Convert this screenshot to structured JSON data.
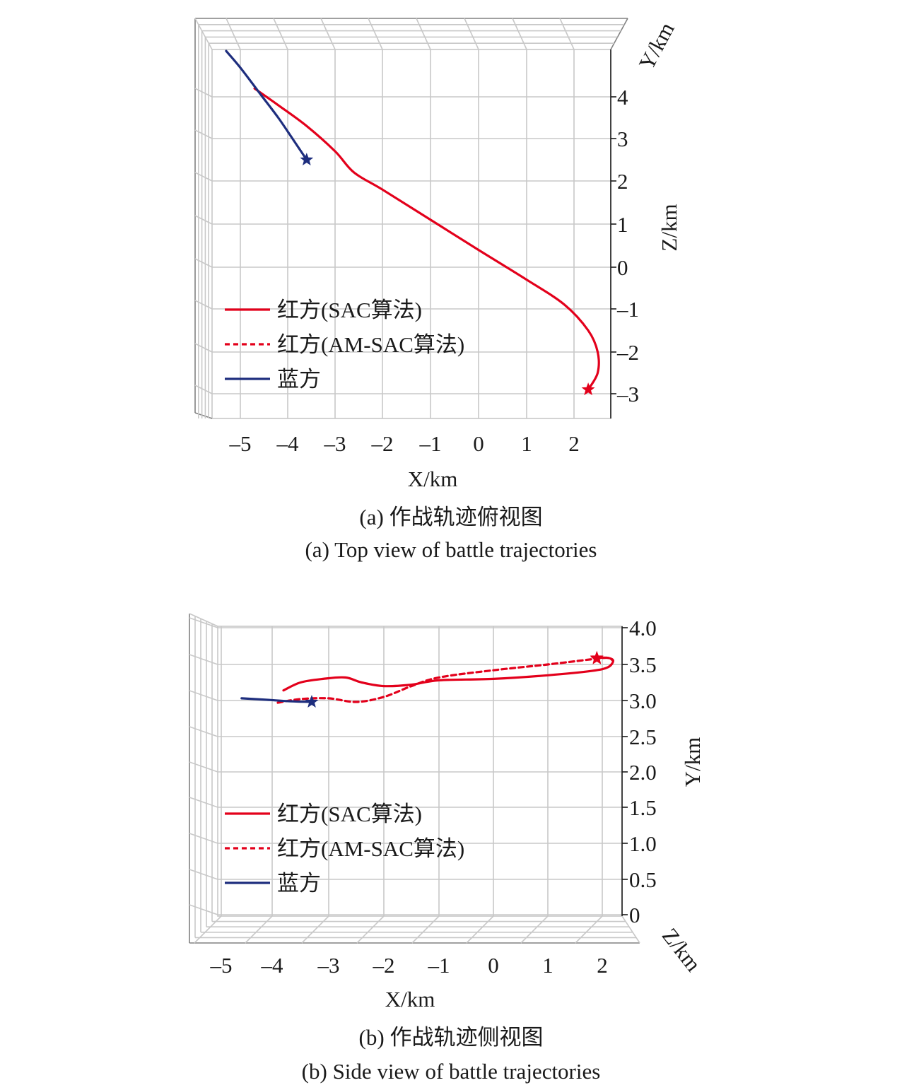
{
  "chart_data": [
    {
      "type": "line",
      "view": "top",
      "caption_cn": "(a) 作战轨迹俯视图",
      "caption_en": "(a) Top view of battle trajectories",
      "xlabel": "X/km",
      "ylabel": "Z/km",
      "depth_label": "Y/km",
      "x_ticks": [
        "–5",
        "–4",
        "–3",
        "–2",
        "–1",
        "0",
        "1",
        "2"
      ],
      "y_ticks": [
        "4",
        "3",
        "2",
        "1",
        "0",
        "–1",
        "–2",
        "–3"
      ],
      "xlim": [
        -5.6,
        2.8
      ],
      "ylim": [
        -3.5,
        4.9
      ],
      "grid": true,
      "legend_position": "bottom-left",
      "legend": [
        {
          "label": "红方(SAC算法)",
          "color": "#e3001b",
          "dash": "solid"
        },
        {
          "label": "红方(AM-SAC算法)",
          "color": "#e3001b",
          "dash": "dashed"
        },
        {
          "label": "蓝方",
          "color": "#1e2e7e",
          "dash": "solid"
        }
      ],
      "series": [
        {
          "label_index": 0,
          "color": "#e3001b",
          "dash": "solid",
          "end_marker": "star",
          "x": [
            -4.7,
            -4.2,
            -3.6,
            -3.0,
            -2.6,
            -2.0,
            -1.0,
            0.0,
            1.0,
            1.8,
            2.3,
            2.5,
            2.5,
            2.3
          ],
          "y": [
            4.2,
            3.8,
            3.3,
            2.7,
            2.2,
            1.8,
            1.1,
            0.4,
            -0.3,
            -0.9,
            -1.5,
            -2.0,
            -2.5,
            -2.9
          ]
        },
        {
          "label_index": 2,
          "color": "#1e2e7e",
          "dash": "solid",
          "end_marker": "star",
          "x": [
            -5.3,
            -5.0,
            -4.6,
            -4.2,
            -3.9,
            -3.6
          ],
          "y": [
            5.1,
            4.7,
            4.1,
            3.5,
            3.0,
            2.5
          ]
        }
      ]
    },
    {
      "type": "line",
      "view": "side",
      "caption_cn": "(b) 作战轨迹侧视图",
      "caption_en": "(b) Side view of battle trajectories",
      "xlabel": "X/km",
      "ylabel": "Y/km",
      "depth_label": "Z/km",
      "x_ticks": [
        "–5",
        "–4",
        "–3",
        "–2",
        "–1",
        "0",
        "1",
        "2"
      ],
      "y_ticks": [
        "4.0",
        "3.5",
        "3.0",
        "2.5",
        "2.0",
        "1.5",
        "1.0",
        "0.5",
        "0"
      ],
      "xlim": [
        -5.5,
        2.4
      ],
      "ylim": [
        0,
        4.0
      ],
      "grid": true,
      "legend_position": "bottom-left",
      "legend": [
        {
          "label": "红方(SAC算法)",
          "color": "#e3001b",
          "dash": "solid"
        },
        {
          "label": "红方(AM-SAC算法)",
          "color": "#e3001b",
          "dash": "dashed"
        },
        {
          "label": "蓝方",
          "color": "#1e2e7e",
          "dash": "solid"
        }
      ],
      "series": [
        {
          "label_index": 0,
          "color": "#e3001b",
          "dash": "solid",
          "end_marker": "star",
          "x": [
            -3.8,
            -3.5,
            -3.1,
            -2.7,
            -2.4,
            -2.0,
            -1.5,
            -1.0,
            0.0,
            1.0,
            1.8,
            2.1,
            2.2,
            2.1,
            1.9
          ],
          "y": [
            3.14,
            3.25,
            3.3,
            3.32,
            3.25,
            3.2,
            3.22,
            3.28,
            3.3,
            3.35,
            3.41,
            3.46,
            3.55,
            3.59,
            3.59
          ]
        },
        {
          "label_index": 1,
          "color": "#e3001b",
          "dash": "dashed",
          "end_marker": "star",
          "x": [
            -3.9,
            -3.5,
            -3.0,
            -2.5,
            -2.0,
            -1.5,
            -1.0,
            0.0,
            1.0,
            1.8,
            2.1,
            2.2,
            2.1,
            1.9
          ],
          "y": [
            2.97,
            3.02,
            3.03,
            2.98,
            3.05,
            3.2,
            3.32,
            3.42,
            3.5,
            3.57,
            3.59,
            3.55,
            3.59,
            3.58
          ]
        },
        {
          "label_index": 2,
          "color": "#1e2e7e",
          "dash": "solid",
          "end_marker": "star",
          "x": [
            -4.6,
            -4.1,
            -3.7,
            -3.3
          ],
          "y": [
            3.03,
            3.01,
            2.99,
            2.98
          ]
        }
      ]
    }
  ]
}
